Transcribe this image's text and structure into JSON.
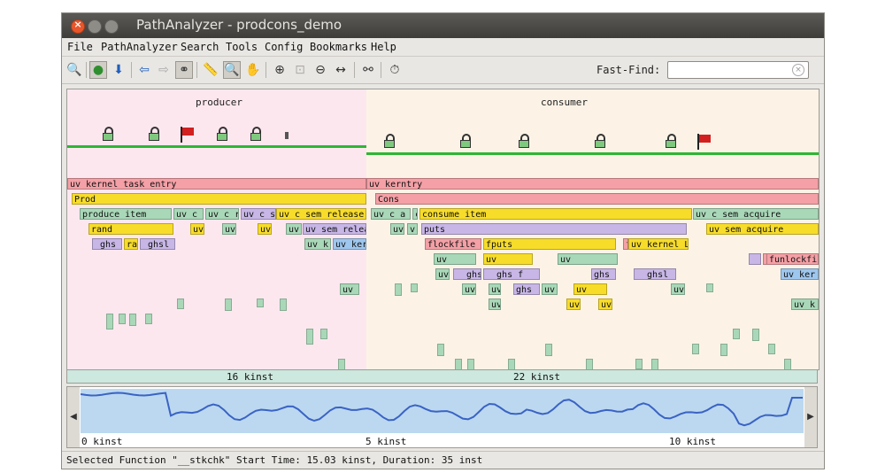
{
  "window": {
    "title": "PathAnalyzer - prodcons_demo"
  },
  "menu": [
    "File",
    "PathAnalyzer",
    "Search",
    "Tools",
    "Config",
    "Bookmarks",
    "Help"
  ],
  "toolbar": {
    "icons": [
      "zoom-to-fit-icon",
      "go-icon",
      "down-arrow-icon",
      "back-arrow-icon",
      "forward-arrow-icon",
      "link-icon",
      "ruler-icon",
      "select-zoom-icon",
      "hand-icon",
      "zoom-in-icon",
      "zoom-box-icon",
      "zoom-out-icon",
      "fit-horizontal-icon",
      "binoculars-icon",
      "timer-icon"
    ],
    "fast_find_label": "Fast-Find:",
    "fast_find_value": ""
  },
  "timeline": {
    "threads": [
      "producer",
      "consumer"
    ],
    "colors": {
      "producer_bg": "#fde7ef",
      "consumer_bg": "#fcf3e6",
      "salmon": "#f4a0a6",
      "yellow": "#f7dc2a",
      "green": "#a9d8b8",
      "lavender": "#c7b6e6",
      "blue": "#9ec7ef"
    },
    "rows": [
      [
        {
          "label": "uv_kernel_task_entry",
          "color": "salmon"
        },
        {
          "label": "uv_kerntry",
          "color": "salmon"
        }
      ],
      [
        {
          "label": "Prod",
          "color": "yellow"
        },
        {
          "label": "Cons",
          "color": "salmon"
        }
      ],
      [
        {
          "label": "produce_item",
          "color": "green"
        },
        {
          "label": "uv_c_",
          "color": "green"
        },
        {
          "label": "uv_c_r",
          "color": "green"
        },
        {
          "label": "uv_c_s",
          "color": "lavender"
        },
        {
          "label": "uv_c_sem_release",
          "color": "yellow"
        },
        {
          "label": "uv_c_a",
          "color": "green"
        },
        {
          "label": "c",
          "color": "green"
        },
        {
          "label": "consume_item",
          "color": "yellow"
        },
        {
          "label": "uv_c_sem_acquire",
          "color": "green"
        }
      ],
      [
        {
          "label": "rand",
          "color": "yellow"
        },
        {
          "label": "uv",
          "color": "yellow"
        },
        {
          "label": "uv",
          "color": "green"
        },
        {
          "label": "uv",
          "color": "yellow"
        },
        {
          "label": "uv",
          "color": "green"
        },
        {
          "label": "uv_sem_release",
          "color": "lavender"
        },
        {
          "label": "uv",
          "color": "green"
        },
        {
          "label": "v",
          "color": "green"
        },
        {
          "label": "puts",
          "color": "lavender"
        },
        {
          "label": "uv_sem_acquire",
          "color": "yellow"
        }
      ],
      [
        {
          "label": "_ghs",
          "color": "lavender"
        },
        {
          "label": "ra",
          "color": "yellow"
        },
        {
          "label": "_ghsl",
          "color": "lavender"
        },
        {
          "label": "uv_k",
          "color": "green"
        },
        {
          "label": "uv_ker",
          "color": "blue"
        },
        {
          "label": "flockfile",
          "color": "salmon"
        },
        {
          "label": "fputs",
          "color": "yellow"
        },
        {
          "label": "funlockfile",
          "color": "salmon"
        },
        {
          "label": "uv_kernel_LR_task",
          "color": "yellow"
        }
      ],
      [
        {
          "label": "uv",
          "color": "green"
        },
        {
          "label": "uv",
          "color": "yellow"
        },
        {
          "label": "uv",
          "color": "green"
        },
        {
          "label": "__ghs_f",
          "color": "lavender"
        },
        {
          "label": "flockfile",
          "color": "salmon"
        },
        {
          "label": "funlockfil",
          "color": "salmon"
        },
        {
          "label": "__ghs_f",
          "color": "lavender"
        },
        {
          "label": "uv",
          "color": "yellow"
        },
        {
          "label": "uv",
          "color": "lavender"
        },
        {
          "label": "uv_kerne",
          "color": "blue"
        }
      ],
      [
        {
          "label": "uv_c",
          "color": "green"
        },
        {
          "label": "__ghs",
          "color": "lavender"
        },
        {
          "label": "__ghs_f",
          "color": "lavender"
        },
        {
          "label": "ghs_f",
          "color": "lavender"
        },
        {
          "label": "__ghsl",
          "color": "lavender"
        },
        {
          "label": "uv_ker",
          "color": "blue"
        }
      ],
      [
        {
          "label": "uv_c",
          "color": "green"
        },
        {
          "label": "uv",
          "color": "green"
        },
        {
          "label": "uv",
          "color": "green"
        },
        {
          "label": "ghs",
          "color": "lavender"
        },
        {
          "label": "uv",
          "color": "green"
        },
        {
          "label": "uv",
          "color": "yellow"
        },
        {
          "label": "uv_",
          "color": "green"
        }
      ],
      [
        {
          "label": "uv",
          "color": "green"
        },
        {
          "label": "uv",
          "color": "yellow"
        },
        {
          "label": "uv",
          "color": "yellow"
        },
        {
          "label": "uv_k",
          "color": "green"
        }
      ]
    ]
  },
  "ruler": {
    "producer_duration": "16 kinst",
    "consumer_duration": "22 kinst"
  },
  "overview": {
    "axis_labels": [
      "0 kinst",
      "5 kinst",
      "10 kinst"
    ],
    "arrows": [
      "◀",
      "▶"
    ]
  },
  "status": {
    "text": "Selected Function \"__stkchk\" Start Time: 15.03 kinst, Duration: 35 inst"
  }
}
